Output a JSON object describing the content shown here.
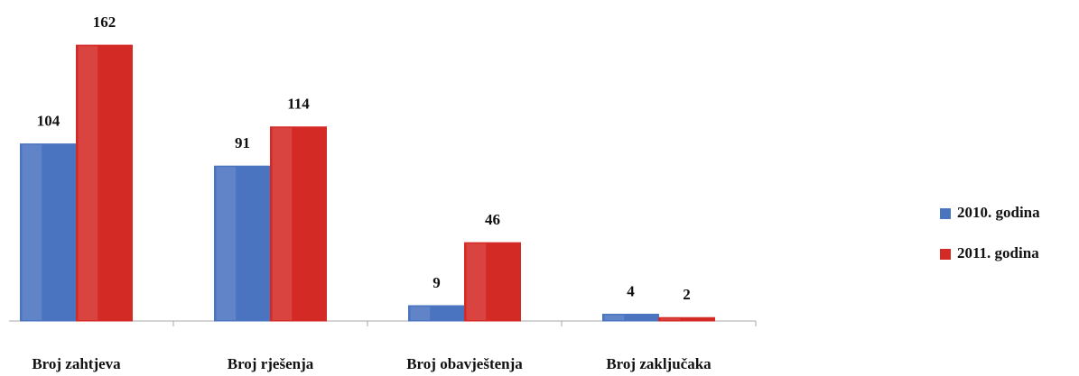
{
  "chart_data": {
    "type": "bar",
    "categories": [
      "Broj zahtjeva",
      "Broj rješenja",
      "Broj obavještenja",
      "Broj zaključaka"
    ],
    "series": [
      {
        "name": "2010. godina",
        "color": "#4a74c0",
        "values": [
          104,
          91,
          9,
          4
        ]
      },
      {
        "name": "2011. godina",
        "color": "#d42a26",
        "values": [
          162,
          114,
          46,
          2
        ]
      }
    ],
    "ylim": [
      0,
      170
    ],
    "legend": "right"
  }
}
